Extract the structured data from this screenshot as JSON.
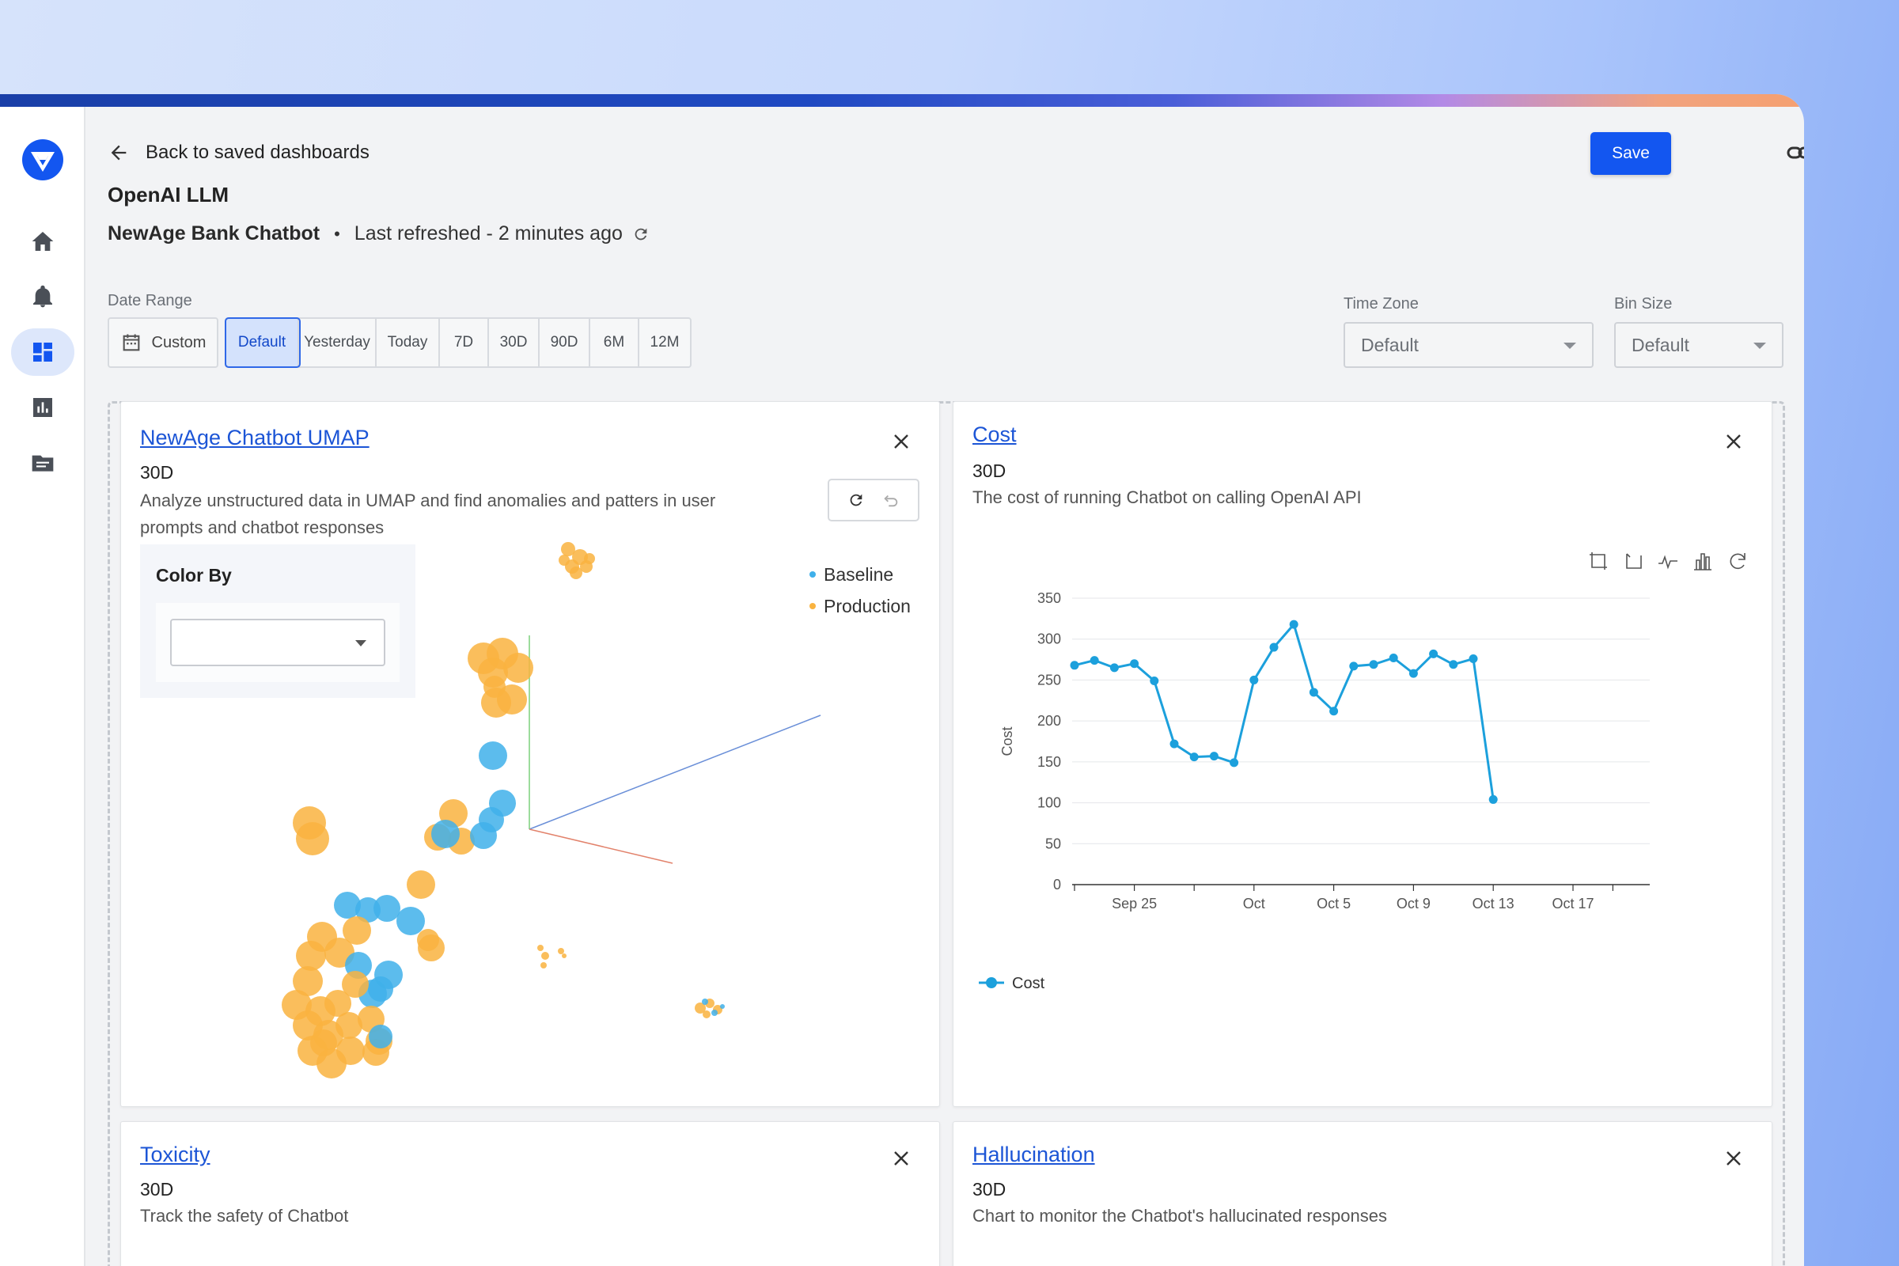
{
  "header": {
    "back_label": "Back to saved dashboards",
    "dashboard_title": "OpenAI LLM",
    "model_name": "NewAge Bank Chatbot",
    "separator": "•",
    "last_refreshed": "Last refreshed - 2 minutes ago",
    "save_label": "Save"
  },
  "sidebar": {
    "items": [
      {
        "icon": "home-icon"
      },
      {
        "icon": "bell-icon"
      },
      {
        "icon": "dashboard-icon",
        "active": true
      },
      {
        "icon": "bar-chart-icon"
      },
      {
        "icon": "folder-icon"
      }
    ]
  },
  "filters": {
    "date_range_label": "Date Range",
    "custom_label": "Custom",
    "ranges": [
      "Default",
      "Yesterday",
      "Today",
      "7D",
      "30D",
      "90D",
      "6M",
      "12M"
    ],
    "active_range": "Default",
    "time_zone_label": "Time Zone",
    "time_zone_value": "Default",
    "bin_size_label": "Bin Size",
    "bin_size_value": "Default"
  },
  "cards": {
    "umap": {
      "title": "NewAge Chatbot UMAP",
      "range": "30D",
      "desc_line1": "Analyze unstructured data in UMAP and find anomalies and patters in user",
      "desc_line2": "prompts and chatbot responses",
      "color_by_label": "Color By",
      "color_by_value": "",
      "legend": [
        {
          "name": "Baseline",
          "color": "#3fb0ea"
        },
        {
          "name": "Production",
          "color": "#f9b340"
        }
      ]
    },
    "cost": {
      "title": "Cost",
      "range": "30D",
      "desc": "The cost of running Chatbot on calling OpenAI API"
    },
    "toxicity": {
      "title": "Toxicity",
      "range": "30D",
      "desc": "Track the safety of Chatbot"
    },
    "hallucination": {
      "title": "Hallucination",
      "range": "30D",
      "desc": "Chart to monitor the Chatbot's hallucinated responses"
    }
  },
  "chart_data": {
    "type": "line",
    "title": "",
    "xlabel": "",
    "ylabel": "Cost",
    "ylim": [
      0,
      350
    ],
    "yticks": [
      0,
      50,
      100,
      150,
      200,
      250,
      300,
      350
    ],
    "xtick_labels": [
      "Sep 25",
      "Oct",
      "Oct 5",
      "Oct 9",
      "Oct 13",
      "Oct 17"
    ],
    "grid": true,
    "legend_position": "bottom-left",
    "color": "#1ca0dc",
    "series": [
      {
        "name": "Cost",
        "x": [
          "Sep 22",
          "Sep 23",
          "Sep 24",
          "Sep 25",
          "Sep 26",
          "Sep 27",
          "Sep 28",
          "Sep 29",
          "Sep 30",
          "Oct 1",
          "Oct 2",
          "Oct 3",
          "Oct 4",
          "Oct 5",
          "Oct 6",
          "Oct 7",
          "Oct 8",
          "Oct 9",
          "Oct 10",
          "Oct 11",
          "Oct 12",
          "Oct 13"
        ],
        "values": [
          268,
          274,
          265,
          270,
          249,
          172,
          156,
          157,
          149,
          250,
          290,
          318,
          235,
          212,
          267,
          269,
          277,
          258,
          282,
          269,
          276,
          104
        ]
      }
    ]
  }
}
